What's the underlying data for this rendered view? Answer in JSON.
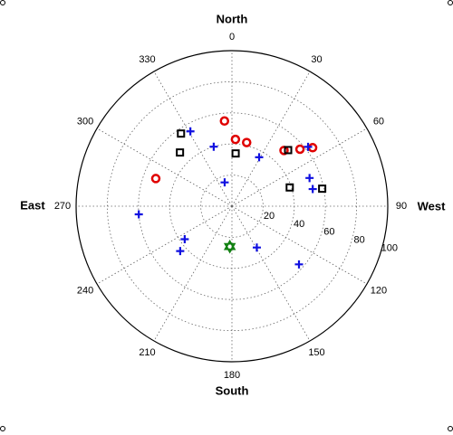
{
  "chart_data": {
    "type": "polar_scatter",
    "direction_labels": {
      "north": "North",
      "south": "South",
      "east": "East",
      "west": "West"
    },
    "theta_direction": "clockwise",
    "theta_zero": "top",
    "rlim": [
      0,
      100
    ],
    "rticks": [
      20,
      40,
      60,
      80,
      100
    ],
    "theta_ticks": [
      0,
      30,
      60,
      90,
      120,
      150,
      180,
      210,
      240,
      270,
      300,
      330
    ],
    "grid": true,
    "series": [
      {
        "marker": "circle",
        "color": "#e00000",
        "theta": [
          355,
          3,
          13,
          43,
          50,
          54,
          290
        ],
        "r": [
          55,
          43,
          42,
          49,
          57,
          64,
          52
        ]
      },
      {
        "marker": "square",
        "color": "#000000",
        "theta": [
          325,
          4,
          316,
          45,
          72,
          79
        ],
        "r": [
          57,
          34,
          48,
          51,
          39,
          59
        ]
      },
      {
        "marker": "plus",
        "color": "#1010e0",
        "theta": [
          331,
          343,
          29,
          52,
          343,
          70,
          78,
          265,
          235,
          229,
          149,
          131
        ],
        "r": [
          55,
          40,
          36,
          62,
          16,
          53,
          53,
          60,
          37,
          44,
          31,
          57
        ]
      },
      {
        "marker": "star",
        "color": "#108010",
        "theta": [
          183
        ],
        "r": [
          26
        ]
      }
    ]
  }
}
